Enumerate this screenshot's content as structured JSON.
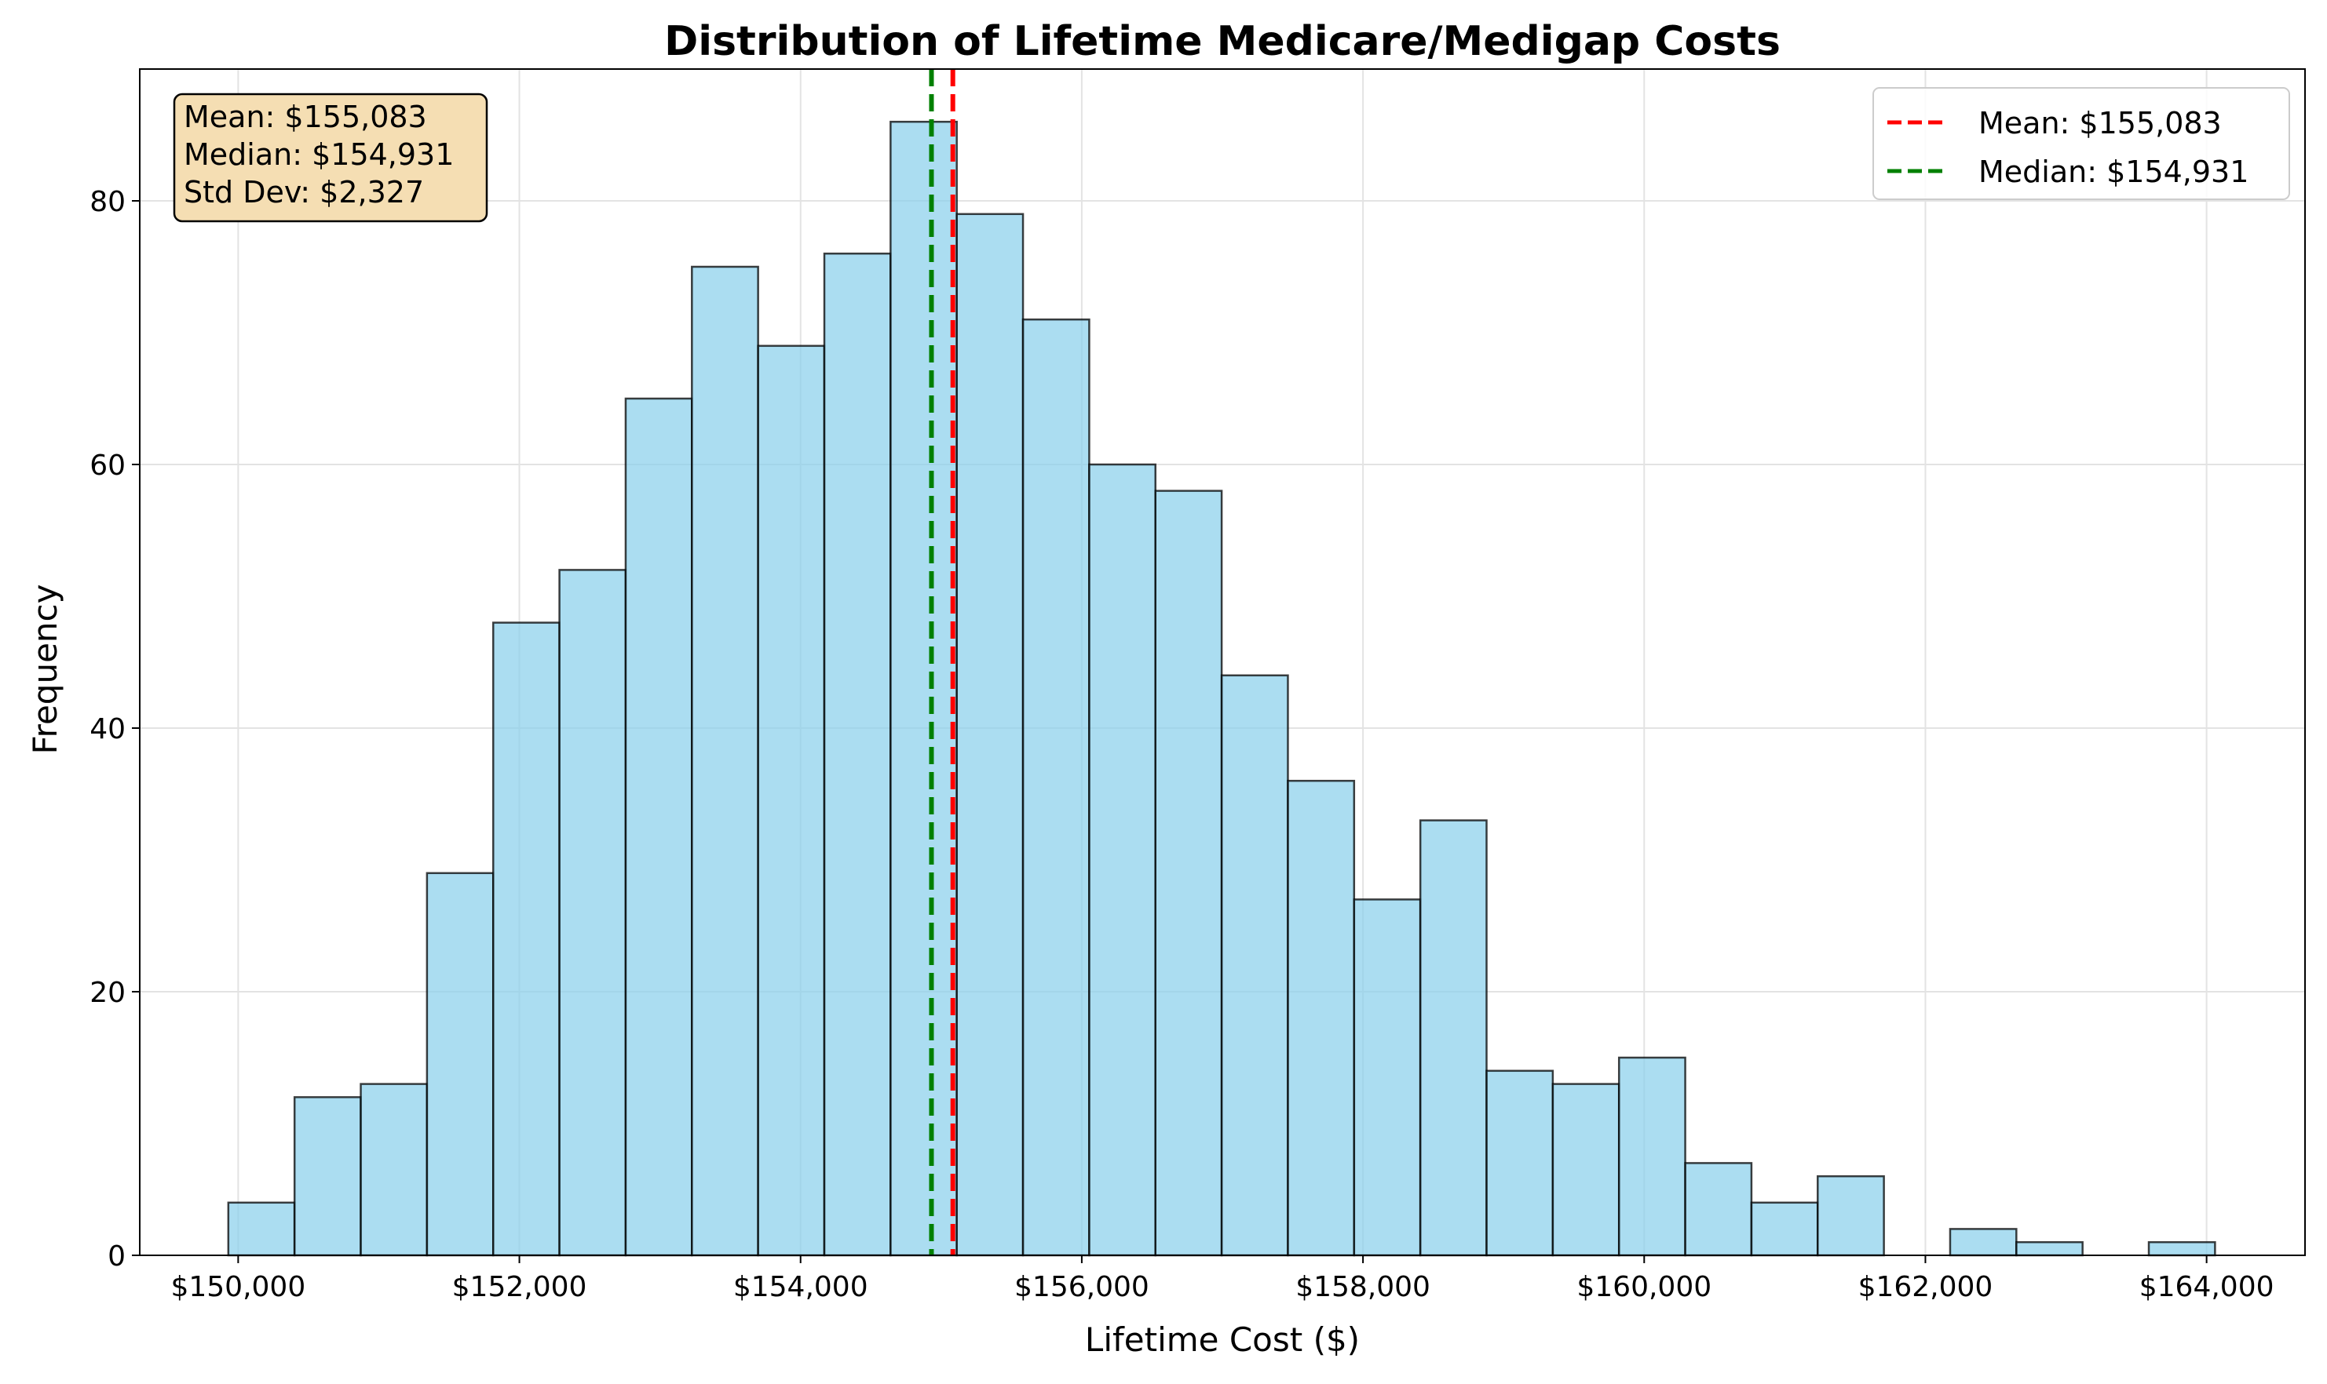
{
  "chart_data": {
    "type": "bar",
    "title": "Distribution of Lifetime Medicare/Medigap Costs",
    "xlabel": "Lifetime Cost ($)",
    "ylabel": "Frequency",
    "xlim": [
      149300,
      164700
    ],
    "ylim": [
      0,
      90
    ],
    "x_ticks": [
      150000,
      152000,
      154000,
      156000,
      158000,
      160000,
      162000,
      164000
    ],
    "x_tick_labels": [
      "$150,000",
      "$152,000",
      "$154,000",
      "$156,000",
      "$158,000",
      "$160,000",
      "$162,000",
      "$164,000"
    ],
    "y_ticks": [
      0,
      20,
      40,
      60,
      80
    ],
    "y_tick_labels": [
      "0",
      "20",
      "40",
      "60",
      "80"
    ],
    "grid": true,
    "bin_edges": [
      149930,
      150401,
      150872,
      151343,
      151814,
      152285,
      152756,
      153227,
      153698,
      154169,
      154640,
      155111,
      155582,
      156053,
      156524,
      156995,
      157466,
      157937,
      158408,
      158879,
      159350,
      159821,
      160292,
      160763,
      161234,
      161705,
      162176,
      162647,
      163118,
      163589,
      164060
    ],
    "values": [
      4,
      12,
      13,
      29,
      48,
      52,
      65,
      75,
      69,
      76,
      86,
      79,
      71,
      60,
      58,
      44,
      36,
      27,
      33,
      14,
      13,
      15,
      7,
      4,
      6,
      0,
      2,
      1,
      0,
      1
    ],
    "bar_color": "#87CEEB",
    "bar_edge_color": "#000000",
    "reference_lines": [
      {
        "name": "Mean: $155,083",
        "x": 155083,
        "color": "#FF0000"
      },
      {
        "name": "Median: $154,931",
        "x": 154931,
        "color": "#008000"
      }
    ],
    "legend_position": "top-right",
    "stats_box": {
      "lines": [
        "Mean: $155,083",
        "Median: $154,931",
        "Std Dev: $2,327"
      ],
      "background": "#F5DEB3",
      "position": "top-left"
    }
  }
}
